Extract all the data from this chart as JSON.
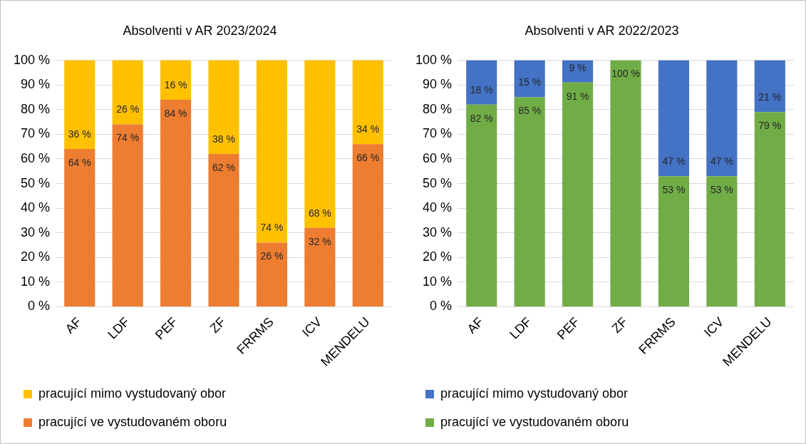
{
  "chart_data": [
    {
      "type": "bar",
      "title": "Absolventi v AR 2023/2024",
      "categories": [
        "AF",
        "LDF",
        "PEF",
        "ZF",
        "FRRMS",
        "ICV",
        "MENDELU"
      ],
      "stacked": true,
      "ylim": [
        0,
        100
      ],
      "yticks": [
        {
          "value": 0,
          "label": "0 %"
        },
        {
          "value": 10,
          "label": "10 %"
        },
        {
          "value": 20,
          "label": "20 %"
        },
        {
          "value": 30,
          "label": "30 %"
        },
        {
          "value": 40,
          "label": "40 %"
        },
        {
          "value": 50,
          "label": "50 %"
        },
        {
          "value": 60,
          "label": "60 %"
        },
        {
          "value": 70,
          "label": "70 %"
        },
        {
          "value": 80,
          "label": "80 %"
        },
        {
          "value": 90,
          "label": "90 %"
        },
        {
          "value": 100,
          "label": "100 %"
        }
      ],
      "grid": "y",
      "legend": "bottom",
      "series": [
        {
          "name": "pracující ve vystudovaném oboru",
          "color": "#ed7d31",
          "values": [
            64,
            74,
            84,
            62,
            26,
            32,
            66
          ],
          "value_labels": [
            "64 %",
            "74 %",
            "84 %",
            "62 %",
            "26 %",
            "32 %",
            "66 %"
          ]
        },
        {
          "name": "pracující mimo vystudovaný obor",
          "color": "#ffc000",
          "values": [
            36,
            26,
            16,
            38,
            74,
            68,
            34
          ],
          "value_labels": [
            "36 %",
            "26 %",
            "16 %",
            "38 %",
            "74 %",
            "68 %",
            "34 %"
          ]
        }
      ]
    },
    {
      "type": "bar",
      "title": "Absolventi v AR 2022/2023",
      "categories": [
        "AF",
        "LDF",
        "PEF",
        "ZF",
        "FRRMS",
        "ICV",
        "MENDELU"
      ],
      "stacked": true,
      "ylim": [
        0,
        100
      ],
      "yticks": [
        {
          "value": 0,
          "label": "0 %"
        },
        {
          "value": 10,
          "label": "10 %"
        },
        {
          "value": 20,
          "label": "20 %"
        },
        {
          "value": 30,
          "label": "30 %"
        },
        {
          "value": 40,
          "label": "40 %"
        },
        {
          "value": 50,
          "label": "50 %"
        },
        {
          "value": 60,
          "label": "60 %"
        },
        {
          "value": 70,
          "label": "70 %"
        },
        {
          "value": 80,
          "label": "80 %"
        },
        {
          "value": 90,
          "label": "90 %"
        },
        {
          "value": 100,
          "label": "100 %"
        }
      ],
      "grid": "y",
      "legend": "bottom",
      "series": [
        {
          "name": "pracující ve vystudovaném oboru",
          "color": "#70ad47",
          "values": [
            82,
            85,
            91,
            100,
            53,
            53,
            79
          ],
          "value_labels": [
            "82 %",
            "85 %",
            "91 %",
            "100 %",
            "53 %",
            "53 %",
            "79 %"
          ]
        },
        {
          "name": "pracující mimo vystudovaný obor",
          "color": "#4472c4",
          "values": [
            18,
            15,
            9,
            0,
            47,
            47,
            21
          ],
          "value_labels": [
            "18 %",
            "15 %",
            "9 %",
            null,
            "47 %",
            "47 %",
            "21 %"
          ]
        }
      ]
    }
  ]
}
